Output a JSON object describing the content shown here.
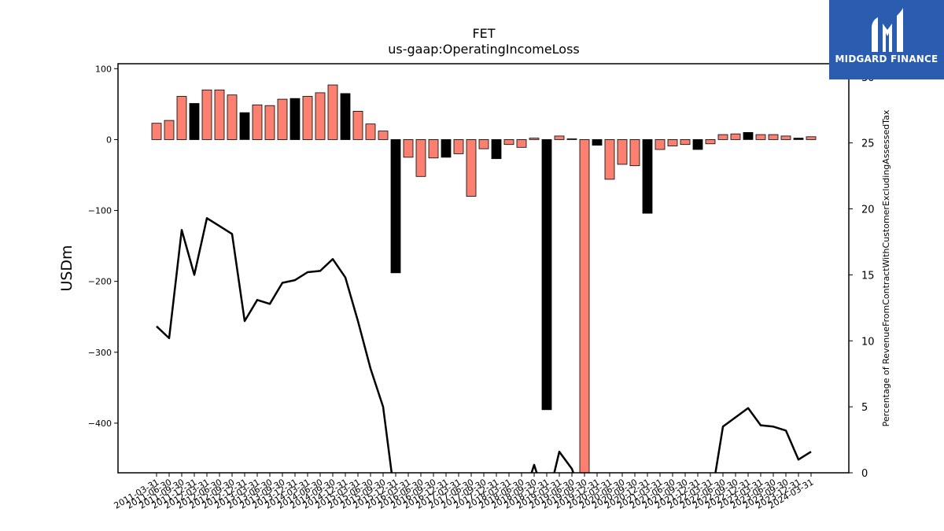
{
  "brand": {
    "name": "MIDGARD FINANCE",
    "colors": {
      "background": "#2a5db0",
      "text": "#ffffff"
    }
  },
  "chart_data": {
    "type": "bar",
    "title": "FET",
    "subtitle": "us-gaap:OperatingIncomeLoss",
    "ylabel": "USDm",
    "y2label": "Percentage of RevenueFromContractWithCustomerExcludingAssessedTax",
    "ylim": [
      -470,
      107
    ],
    "y2lim": [
      0,
      31
    ],
    "yticks": [
      100,
      0,
      -100,
      -200,
      -300,
      -400
    ],
    "y2ticks": [
      30,
      25,
      20,
      15,
      10,
      5,
      0
    ],
    "grid": false,
    "colors": {
      "positive_quarter": "#fa8072",
      "annual_q4": "#000000",
      "line": "#000000"
    },
    "categories": [
      "2011-03-31",
      "2011-06-30",
      "2011-09-30",
      "2011-12-31",
      "2012-03-31",
      "2012-06-30",
      "2012-09-30",
      "2012-12-31",
      "2013-03-31",
      "2013-06-30",
      "2013-09-30",
      "2013-12-31",
      "2014-03-31",
      "2014-06-30",
      "2014-09-30",
      "2014-12-31",
      "2015-03-31",
      "2015-06-30",
      "2015-09-30",
      "2015-12-31",
      "2016-03-31",
      "2016-06-30",
      "2016-09-30",
      "2016-12-31",
      "2017-03-31",
      "2017-06-30",
      "2017-09-30",
      "2017-12-31",
      "2018-03-31",
      "2018-06-30",
      "2018-09-30",
      "2018-12-31",
      "2019-03-31",
      "2019-06-30",
      "2019-09-30",
      "2019-12-31",
      "2020-03-31",
      "2020-06-30",
      "2020-09-30",
      "2020-12-31",
      "2021-03-31",
      "2021-06-30",
      "2021-09-30",
      "2021-12-31",
      "2022-03-31",
      "2022-06-30",
      "2022-09-30",
      "2022-12-31",
      "2023-03-31",
      "2023-06-30",
      "2023-09-30",
      "2023-12-31",
      "2024-03-31"
    ],
    "tick_labels": [
      "2011-03-31",
      "2011-06-30",
      "2011-09-30",
      "2011-12-31",
      "2012-03-31",
      "2012-06-30",
      "2012-09-30",
      "2012-12-31",
      "2013-03-31",
      "2013-06-30",
      "2013-09-30",
      "2013-12-31",
      "2014-03-31",
      "2014-06-30",
      "2014-09-30",
      "2014-12-31",
      "2015-03-31",
      "2015-06-30",
      "2015-09-30",
      "2015-12-31",
      "2016-03-31",
      "2016-06-30",
      "2016-09-30",
      "2016-12-31",
      "2017-03-31",
      "2017-06-30",
      "2017-09-30",
      "2017-12-31",
      "2018-03-31",
      "2018-06-30",
      "2018-09-30",
      "2018-12-31",
      "2019-03-31",
      "2019-06-30",
      "2019-09-30",
      "2019-12-31",
      "2020-03-31",
      "2020-06-30",
      "2020-09-30",
      "2020-12-31",
      "2021-03-31",
      "2021-06-30",
      "2021-09-30",
      "2021-12-31",
      "2022-03-31",
      "2022-06-30",
      "2022-09-30",
      "2022-12-31",
      "2023-03-31",
      "2023-06-30",
      "2023-09-30",
      "2023-12-31",
      "2024-03-31"
    ],
    "bars": [
      {
        "value": 23,
        "annual": false
      },
      {
        "value": 27,
        "annual": false
      },
      {
        "value": 61,
        "annual": false
      },
      {
        "value": 51,
        "annual": true
      },
      {
        "value": 70,
        "annual": false
      },
      {
        "value": 70,
        "annual": false
      },
      {
        "value": 63,
        "annual": false
      },
      {
        "value": 38,
        "annual": true
      },
      {
        "value": 49,
        "annual": false
      },
      {
        "value": 48,
        "annual": false
      },
      {
        "value": 57,
        "annual": false
      },
      {
        "value": 58,
        "annual": true
      },
      {
        "value": 61,
        "annual": false
      },
      {
        "value": 66,
        "annual": false
      },
      {
        "value": 77,
        "annual": false
      },
      {
        "value": 65,
        "annual": true
      },
      {
        "value": 40,
        "annual": false
      },
      {
        "value": 22,
        "annual": false
      },
      {
        "value": 12,
        "annual": false
      },
      {
        "value": -188,
        "annual": true
      },
      {
        "value": -25,
        "annual": false
      },
      {
        "value": -52,
        "annual": false
      },
      {
        "value": -26,
        "annual": false
      },
      {
        "value": -25,
        "annual": true
      },
      {
        "value": -20,
        "annual": false
      },
      {
        "value": -80,
        "annual": false
      },
      {
        "value": -13,
        "annual": false
      },
      {
        "value": -27,
        "annual": true
      },
      {
        "value": -7,
        "annual": false
      },
      {
        "value": -11,
        "annual": false
      },
      {
        "value": 2,
        "annual": false
      },
      {
        "value": -381,
        "annual": true
      },
      {
        "value": 5,
        "annual": false
      },
      {
        "value": 1,
        "annual": true
      },
      {
        "value": -470,
        "annual": false
      },
      {
        "value": -8,
        "annual": true
      },
      {
        "value": -56,
        "annual": false
      },
      {
        "value": -35,
        "annual": false
      },
      {
        "value": -37,
        "annual": false
      },
      {
        "value": -104,
        "annual": true
      },
      {
        "value": -14,
        "annual": false
      },
      {
        "value": -9,
        "annual": false
      },
      {
        "value": -7,
        "annual": false
      },
      {
        "value": -14,
        "annual": true
      },
      {
        "value": -6,
        "annual": false
      },
      {
        "value": 7,
        "annual": false
      },
      {
        "value": 8,
        "annual": false
      },
      {
        "value": 10,
        "annual": true
      },
      {
        "value": 7,
        "annual": false
      },
      {
        "value": 7,
        "annual": false
      },
      {
        "value": 5,
        "annual": false
      },
      {
        "value": 2,
        "annual": true
      },
      {
        "value": 4,
        "annual": false
      }
    ],
    "line_pct": [
      11.1,
      10.2,
      18.4,
      15.0,
      19.3,
      18.7,
      18.1,
      11.5,
      13.1,
      12.8,
      14.4,
      14.6,
      15.2,
      15.3,
      16.2,
      14.8,
      11.5,
      7.9,
      5.0,
      null,
      null,
      null,
      null,
      null,
      null,
      null,
      null,
      null,
      null,
      null,
      0.6,
      null,
      1.6,
      0.3,
      null,
      null,
      null,
      null,
      null,
      null,
      null,
      null,
      null,
      null,
      null,
      3.5,
      4.2,
      4.9,
      3.6,
      3.5,
      3.2,
      1.0,
      1.6
    ]
  }
}
